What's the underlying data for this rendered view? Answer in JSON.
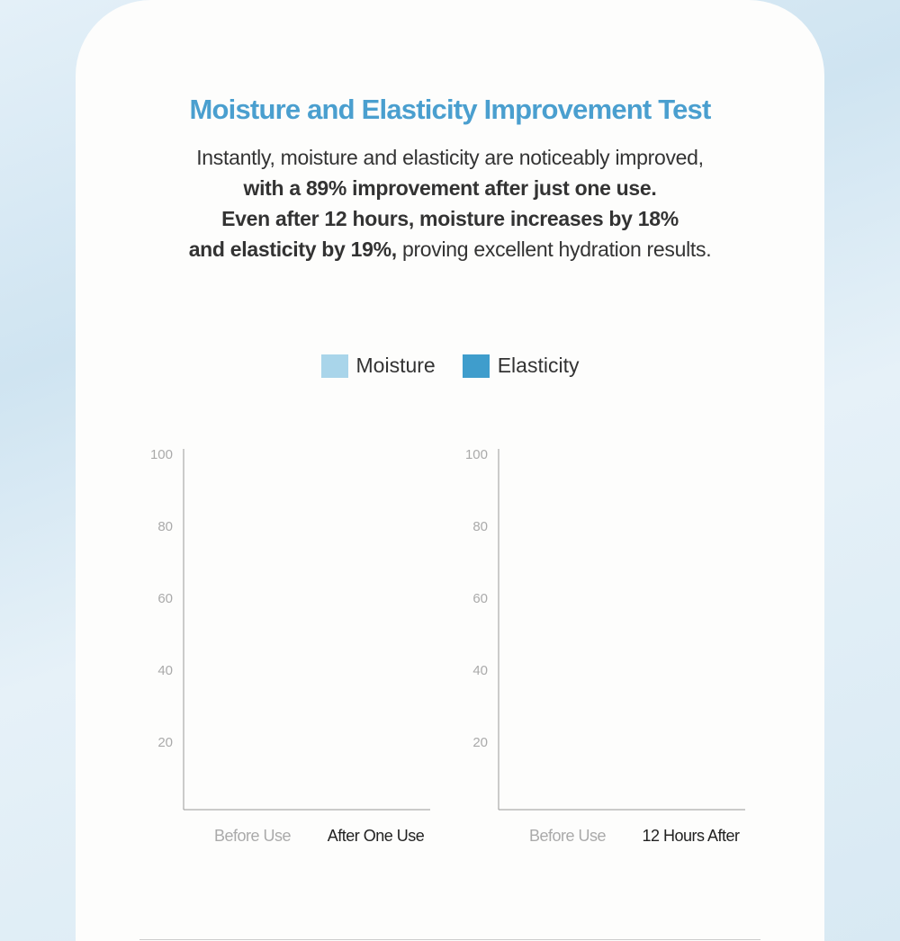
{
  "header": {
    "title": "Moisture and Elasticity Improvement Test",
    "description": [
      [
        {
          "text": "Instantly, moisture and elasticity are noticeably improved,",
          "bold": false
        }
      ],
      [
        {
          "text": "with a 89% improvement after just one use.",
          "bold": true
        }
      ],
      [
        {
          "text": "Even after 12 hours, moisture increases by 18%",
          "bold": true
        }
      ],
      [
        {
          "text": "and elasticity by 19%,",
          "bold": true
        },
        {
          "text": "proving excellent hydration results.",
          "bold": false
        }
      ]
    ]
  },
  "legend": [
    {
      "name": "Moisture",
      "color": "#a9d5ea"
    },
    {
      "name": "Elasticity",
      "color": "#3f9dcc"
    }
  ],
  "chart_data": [
    {
      "type": "bar",
      "categories": [
        "Before Use",
        "After One Use"
      ],
      "category_colors": [
        "#aaaaaa",
        "#222222"
      ],
      "ylim": [
        0,
        100
      ],
      "yticks": [
        20,
        40,
        60,
        80,
        100
      ]
    },
    {
      "type": "bar",
      "categories": [
        "Before Use",
        "12 Hours After"
      ],
      "category_colors": [
        "#aaaaaa",
        "#222222"
      ],
      "ylim": [
        0,
        100
      ],
      "yticks": [
        20,
        40,
        60,
        80,
        100
      ]
    }
  ]
}
